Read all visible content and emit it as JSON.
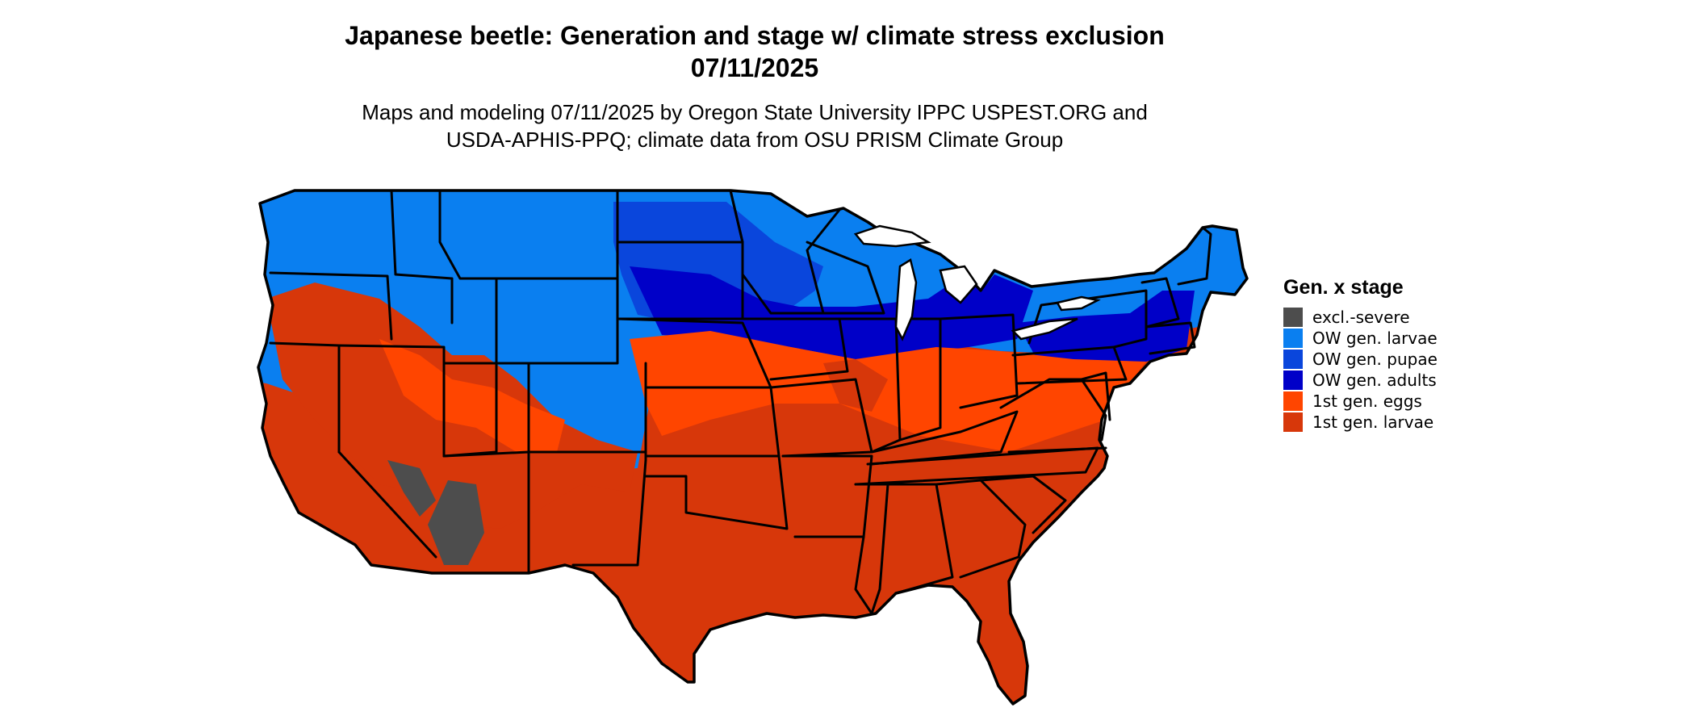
{
  "title_line1": "Japanese beetle: Generation and stage w/ climate stress exclusion",
  "title_line2": "07/11/2025",
  "subtitle_line1": "Maps and modeling 07/11/2025 by Oregon State University IPPC USPEST.ORG and",
  "subtitle_line2": "USDA-APHIS-PPQ; climate data from OSU PRISM Climate Group",
  "legend": {
    "title": "Gen. x stage",
    "items": [
      {
        "label": "excl.-severe",
        "color": "#4d4d4d"
      },
      {
        "label": "OW gen. larvae",
        "color": "#0a7ff0"
      },
      {
        "label": "OW gen. pupae",
        "color": "#0a46dc"
      },
      {
        "label": "OW gen. adults",
        "color": "#0000c8"
      },
      {
        "label": "1st gen. eggs",
        "color": "#ff4500"
      },
      {
        "label": "1st gen. larvae",
        "color": "#d7370a"
      }
    ]
  }
}
